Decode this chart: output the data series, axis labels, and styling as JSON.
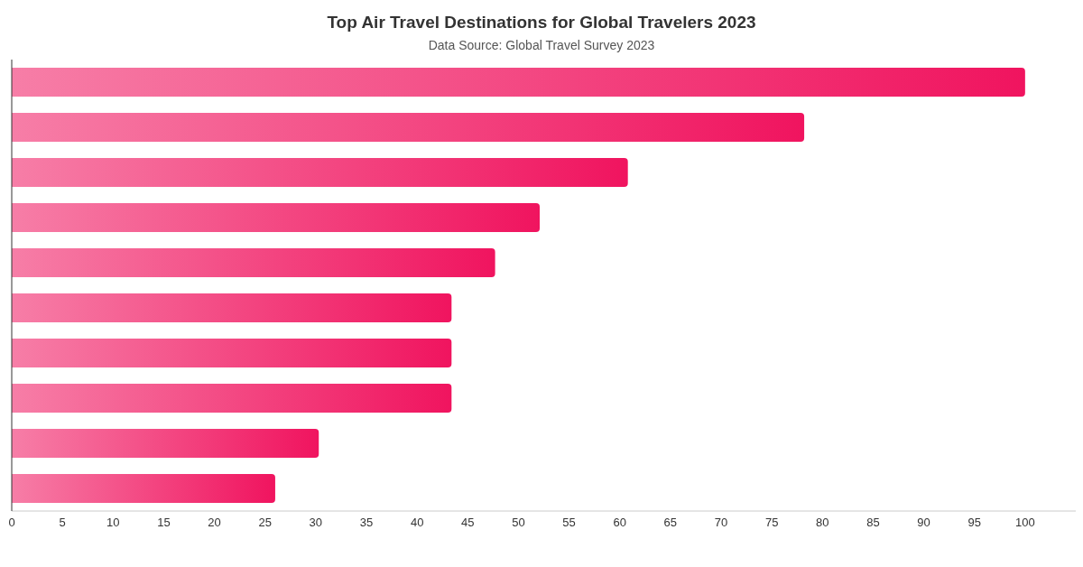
{
  "chart_data": {
    "type": "bar",
    "orientation": "horizontal",
    "title": "Top Air Travel Destinations for Global Travelers 2023",
    "subtitle": "Data Source: Global Travel Survey 2023",
    "categories": [
      null,
      null,
      null,
      null,
      null,
      null,
      null,
      null,
      null,
      null
    ],
    "values": [
      100,
      78.2,
      60.8,
      52.1,
      47.7,
      43.4,
      43.4,
      43.4,
      30.3,
      26.0
    ],
    "color": "#f0145f",
    "xlim": [
      0,
      105
    ],
    "xticks": [
      0,
      5,
      10,
      15,
      20,
      25,
      30,
      35,
      40,
      45,
      50,
      55,
      60,
      65,
      70,
      75,
      80,
      85,
      90,
      95,
      100
    ],
    "grid": false
  }
}
